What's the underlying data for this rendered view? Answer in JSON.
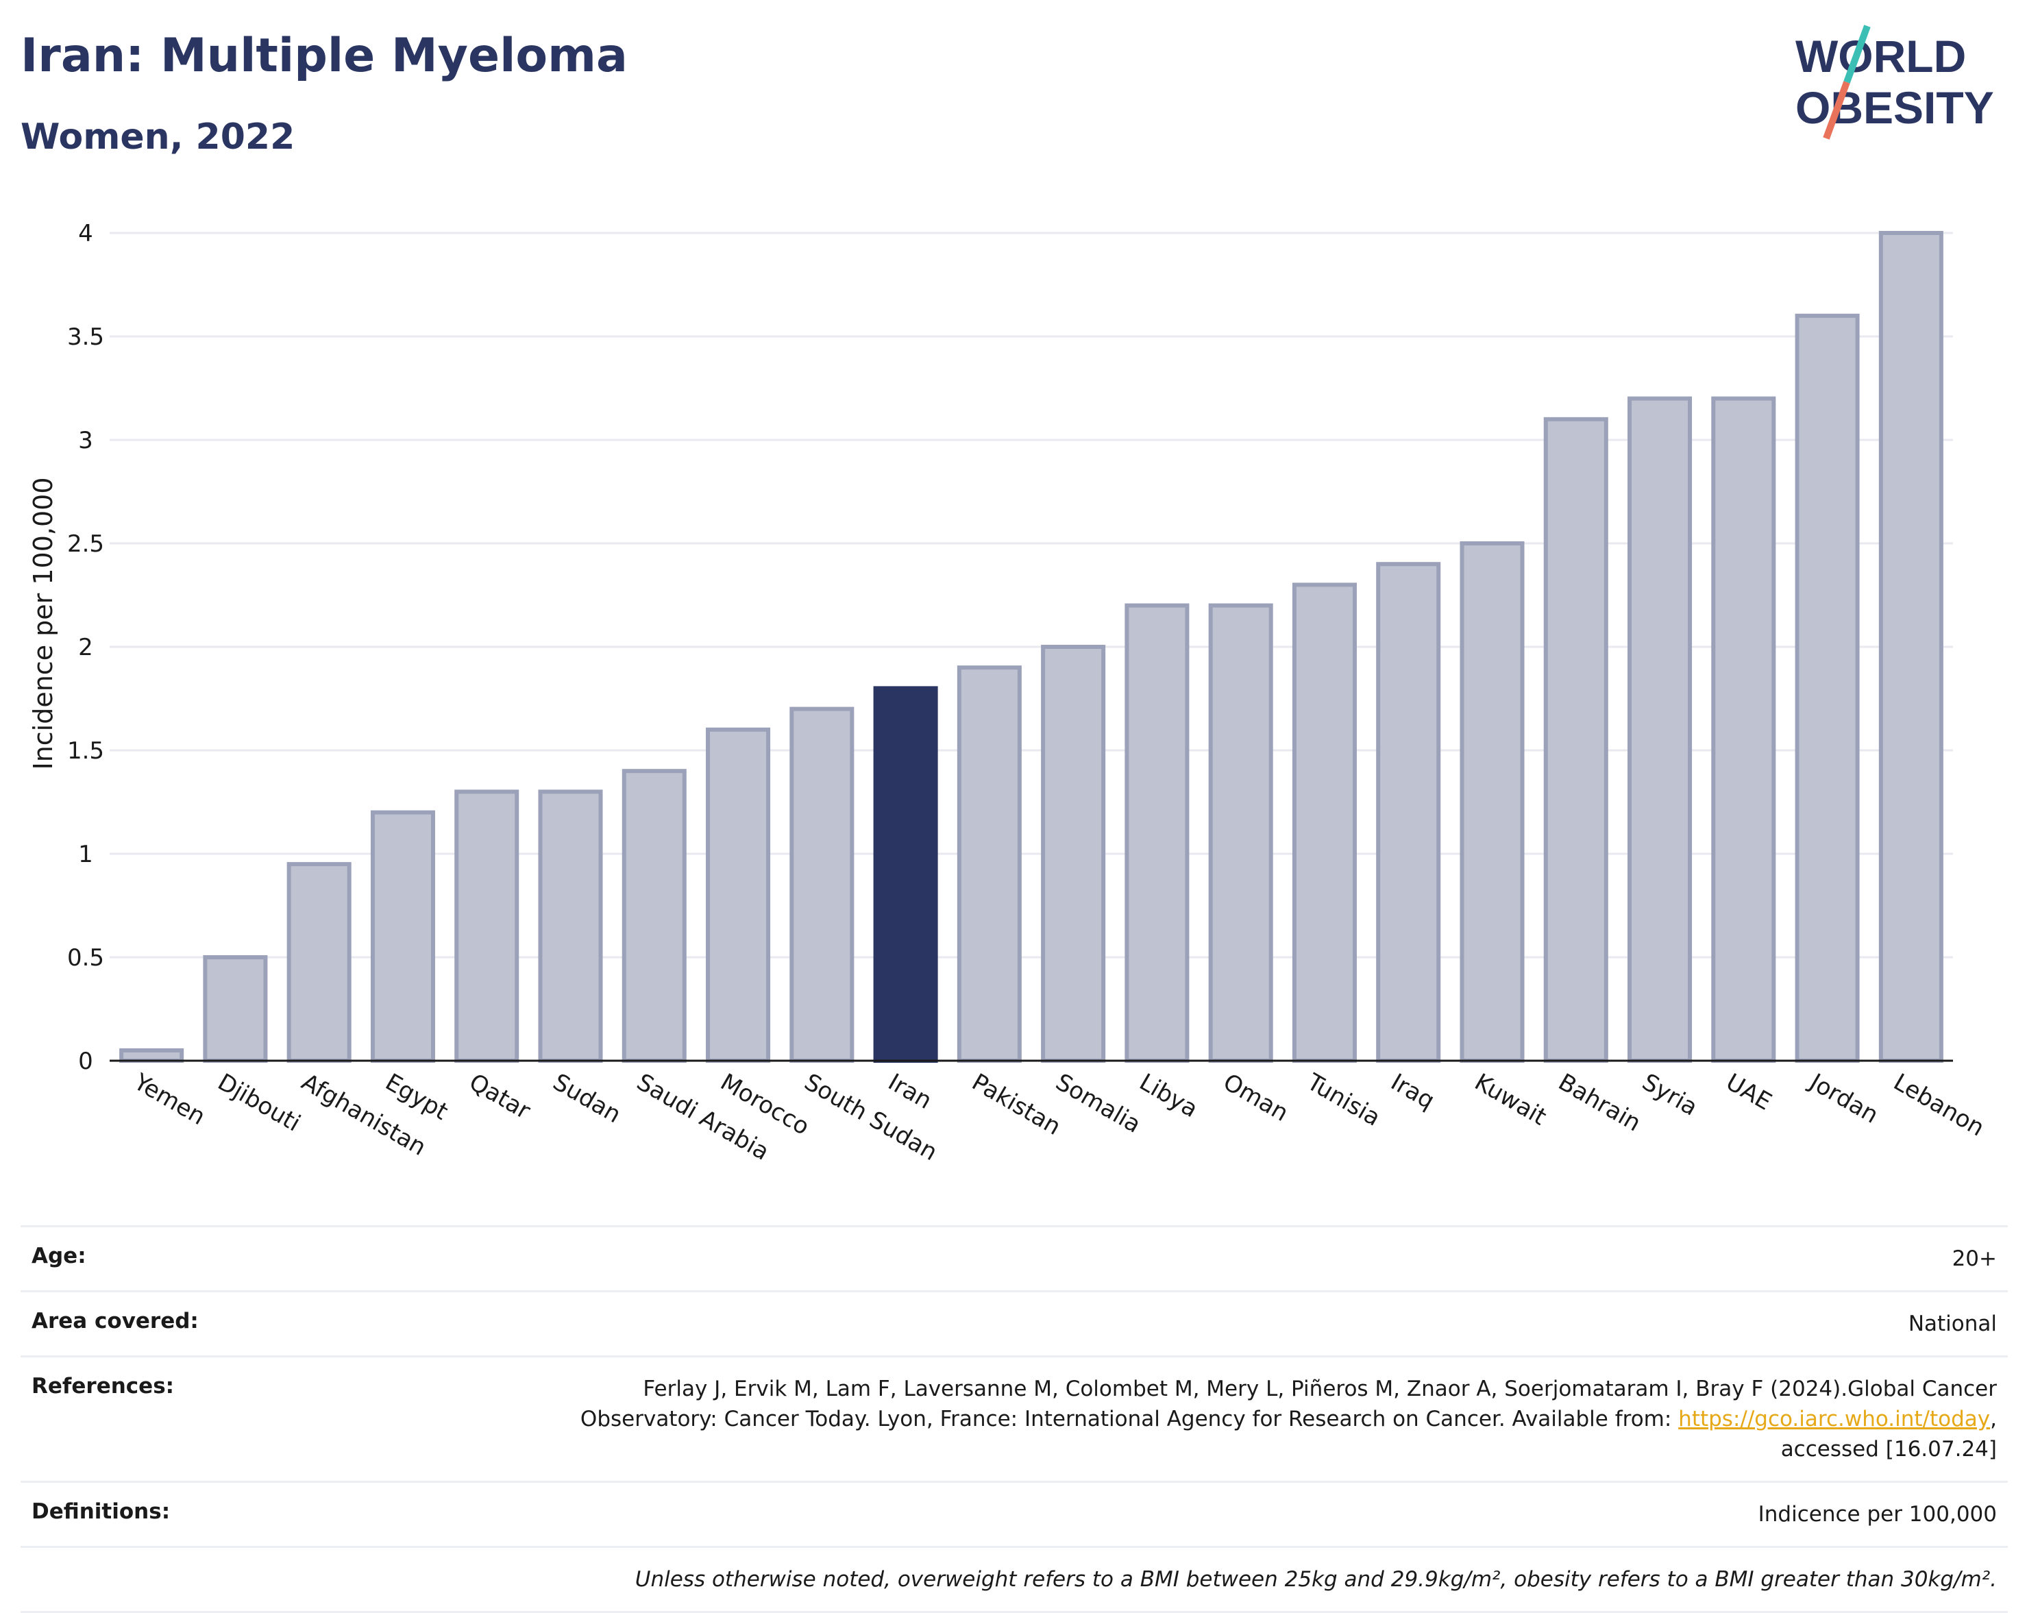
{
  "header": {
    "title": "Iran: Multiple Myeloma",
    "subtitle": "Women, 2022",
    "logo_line1": "WORLD",
    "logo_line2": "OBESITY"
  },
  "colors": {
    "highlight": "#2a3561",
    "bar": "#bfc3d1",
    "bar_stroke": "#9ba1b8",
    "logo_teal": "#3bbfb5",
    "logo_coral": "#e8735a",
    "link": "#e6a817"
  },
  "chart_data": {
    "type": "bar",
    "title": "",
    "xlabel": "",
    "ylabel": "Incidence per 100,000",
    "ylim": [
      0,
      4
    ],
    "yticks": [
      0,
      0.5,
      1,
      1.5,
      2,
      2.5,
      3,
      3.5,
      4
    ],
    "ytick_labels": [
      "0",
      "0.5",
      "1",
      "1.5",
      "2",
      "2.5",
      "3",
      "3.5",
      "4"
    ],
    "grid": true,
    "highlight_category": "Iran",
    "categories": [
      "Yemen",
      "Djibouti",
      "Afghanistan",
      "Egypt",
      "Qatar",
      "Sudan",
      "Saudi Arabia",
      "Morocco",
      "South Sudan",
      "Iran",
      "Pakistan",
      "Somalia",
      "Libya",
      "Oman",
      "Tunisia",
      "Iraq",
      "Kuwait",
      "Bahrain",
      "Syria",
      "UAE",
      "Jordan",
      "Lebanon"
    ],
    "values": [
      0.05,
      0.5,
      0.95,
      1.2,
      1.3,
      1.3,
      1.4,
      1.6,
      1.7,
      1.8,
      1.9,
      2.0,
      2.2,
      2.2,
      2.3,
      2.4,
      2.5,
      3.1,
      3.2,
      3.2,
      3.6,
      4.0
    ]
  },
  "info": {
    "age_label": "Age:",
    "age_value": "20+",
    "area_label": "Area covered:",
    "area_value": "National",
    "references_label": "References:",
    "references_line1": "Ferlay J, Ervik M, Lam F, Laversanne M, Colombet M, Mery L, Piñeros M, Znaor A, Soerjomataram I, Bray F (2024).Global Cancer",
    "references_line2_pre": "Observatory: Cancer Today. Lyon, France: International Agency for Research on Cancer. Available from: ",
    "references_link": "https://gco.iarc.who.int/today",
    "references_line2_post": ",",
    "references_line3": "accessed [16.07.24]",
    "definitions_label": "Definitions:",
    "definitions_value": "Indicence per 100,000",
    "note": "Unless otherwise noted, overweight refers to a BMI between 25kg and 29.9kg/m², obesity refers to a BMI greater than 30kg/m²."
  }
}
